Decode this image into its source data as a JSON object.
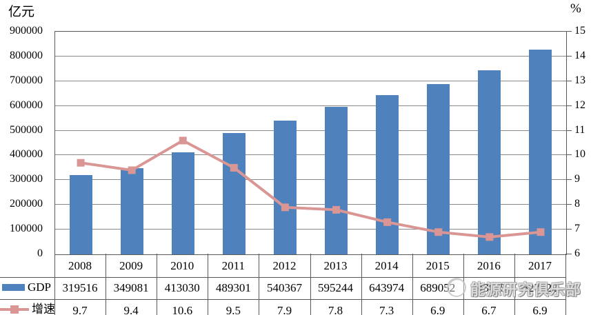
{
  "chart_data": {
    "type": "bar",
    "subtype": "combo-bar-line-with-data-table",
    "categories": [
      "2008",
      "2009",
      "2010",
      "2011",
      "2012",
      "2013",
      "2014",
      "2015",
      "2016",
      "2017"
    ],
    "series": [
      {
        "name": "GDP",
        "type": "bar",
        "axis": "left",
        "color": "#4f81bd",
        "values": [
          319516,
          349081,
          413030,
          489301,
          540367,
          595244,
          643974,
          689052,
          743585,
          827122
        ],
        "table_labels": [
          "319516",
          "349081",
          "413030",
          "489301",
          "540367",
          "595244",
          "643974",
          "689052",
          "743585",
          "827122"
        ]
      },
      {
        "name": "增速",
        "type": "line",
        "axis": "right",
        "color": "#d99694",
        "values": [
          9.7,
          9.4,
          10.6,
          9.5,
          7.9,
          7.8,
          7.3,
          6.9,
          6.7,
          6.9
        ],
        "table_labels": [
          "9.7",
          "9.4",
          "10.6",
          "9.5",
          "7.9",
          "7.8",
          "7.3",
          "6.9",
          "6.7",
          "6.9"
        ]
      }
    ],
    "left_axis": {
      "unit": "亿元",
      "min": 0,
      "max": 900000,
      "step": 100000
    },
    "right_axis": {
      "unit": "%",
      "min": 6,
      "max": 15,
      "step": 1
    },
    "grid": true,
    "legend_position": "data-table-left",
    "title": ""
  },
  "watermark": {
    "text": "能源研究俱乐部"
  },
  "colors": {
    "bar": "#4f81bd",
    "line": "#d99694",
    "gridline": "#878787",
    "border": "#595959",
    "text": "#000000"
  }
}
